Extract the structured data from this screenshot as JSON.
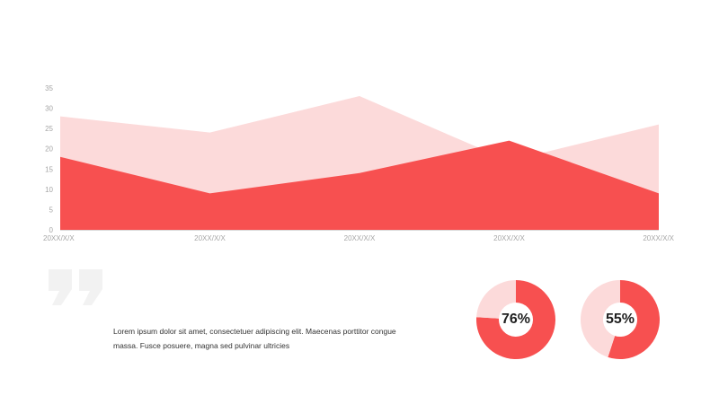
{
  "colors": {
    "series_dark": "#f75050",
    "series_light": "#fcdada",
    "axis_text": "#a6a6a6",
    "axis_line": "#d9d9d9",
    "quote": "#f2f2f2",
    "text": "#333333"
  },
  "chart_data": [
    {
      "type": "area",
      "title": "",
      "xlabel": "",
      "ylabel": "",
      "categories": [
        "20XX/X/X",
        "20XX/X/X",
        "20XX/X/X",
        "20XX/X/X",
        "20XX/X/X"
      ],
      "y_ticks": [
        0,
        5,
        10,
        15,
        20,
        25,
        30,
        35
      ],
      "ylim": [
        0,
        35
      ],
      "grid": false,
      "legend": "none",
      "series": [
        {
          "values": [
            28,
            24,
            33,
            17,
            26
          ],
          "color": "#fcdada"
        },
        {
          "values": [
            18,
            9,
            14,
            22,
            9
          ],
          "color": "#f75050"
        }
      ]
    },
    {
      "type": "pie",
      "label": "76%",
      "slices": [
        {
          "value": 76,
          "color": "#f75050"
        },
        {
          "value": 24,
          "color": "#fcdada"
        }
      ]
    },
    {
      "type": "pie",
      "label": "55%",
      "slices": [
        {
          "value": 55,
          "color": "#f75050"
        },
        {
          "value": 45,
          "color": "#fcdada"
        }
      ]
    }
  ],
  "body_text": "Lorem ipsum dolor sit amet, consectetuer adipiscing elit. Maecenas porttitor congue massa. Fusce posuere, magna sed pulvinar ultricies",
  "quote_icon": "quote-mark-icon"
}
